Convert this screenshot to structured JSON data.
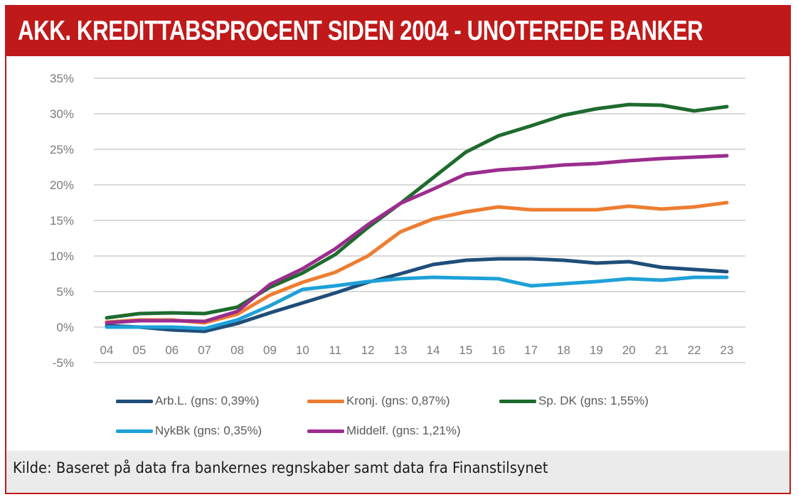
{
  "title": "AKK. KREDITTABSPROCENT SIDEN 2004 - UNOTEREDE BANKER",
  "source": "Kilde: Baseret på data fra bankernes regnskaber samt data fra Finanstilsynet",
  "colors": {
    "brand_red": "#c0191a",
    "source_bg": "#ebebeb",
    "grid": "#d9d9d9"
  },
  "chart_data": {
    "type": "line",
    "title": "AKK. KREDITTABSPROCENT SIDEN 2004 - UNOTEREDE BANKER",
    "xlabel": "",
    "ylabel": "",
    "x": [
      "04",
      "05",
      "06",
      "07",
      "08",
      "09",
      "10",
      "11",
      "12",
      "13",
      "14",
      "15",
      "16",
      "17",
      "18",
      "19",
      "20",
      "21",
      "22",
      "23"
    ],
    "ylim": [
      -5,
      35
    ],
    "yticks": [
      -5,
      0,
      5,
      10,
      15,
      20,
      25,
      30,
      35
    ],
    "ytick_labels": [
      "-5%",
      "0%",
      "5%",
      "10%",
      "15%",
      "20%",
      "25%",
      "30%",
      "35%"
    ],
    "grid": true,
    "legend_position": "bottom",
    "series": [
      {
        "name": "Arb.L. (gns: 0,39%)",
        "color": "#1f4e79",
        "values": [
          0.2,
          0.0,
          -0.4,
          -0.6,
          0.5,
          2.0,
          3.4,
          4.8,
          6.3,
          7.5,
          8.8,
          9.4,
          9.6,
          9.6,
          9.4,
          9.0,
          9.2,
          8.4,
          8.1,
          7.8
        ]
      },
      {
        "name": "Kronj. (gns: 0,87%)",
        "color": "#ed7d31",
        "values": [
          0.7,
          1.0,
          1.0,
          0.6,
          1.8,
          4.5,
          6.3,
          7.7,
          10.0,
          13.4,
          15.2,
          16.2,
          16.9,
          16.5,
          16.5,
          16.5,
          17.0,
          16.6,
          16.9,
          17.5
        ]
      },
      {
        "name": "Sp. DK (gns: 1,55%)",
        "color": "#1e6b2e",
        "values": [
          1.3,
          1.9,
          2.0,
          1.9,
          2.8,
          5.6,
          7.6,
          10.2,
          14.0,
          17.4,
          21.0,
          24.6,
          26.9,
          28.3,
          29.8,
          30.7,
          31.3,
          31.2,
          30.4,
          31.0
        ]
      },
      {
        "name": "NykBk (gns: 0,35%)",
        "color": "#1fa0d8",
        "values": [
          0.0,
          0.0,
          0.0,
          -0.2,
          1.0,
          3.0,
          5.3,
          5.8,
          6.4,
          6.8,
          7.0,
          6.9,
          6.8,
          5.8,
          6.1,
          6.4,
          6.8,
          6.6,
          7.0,
          7.0
        ]
      },
      {
        "name": "Middelf. (gns: 1,21%)",
        "color": "#9b2d8e",
        "values": [
          0.6,
          0.9,
          0.9,
          0.8,
          2.2,
          6.0,
          8.2,
          11.0,
          14.4,
          17.4,
          19.4,
          21.5,
          22.1,
          22.4,
          22.8,
          23.0,
          23.4,
          23.7,
          23.9,
          24.1
        ]
      }
    ]
  }
}
